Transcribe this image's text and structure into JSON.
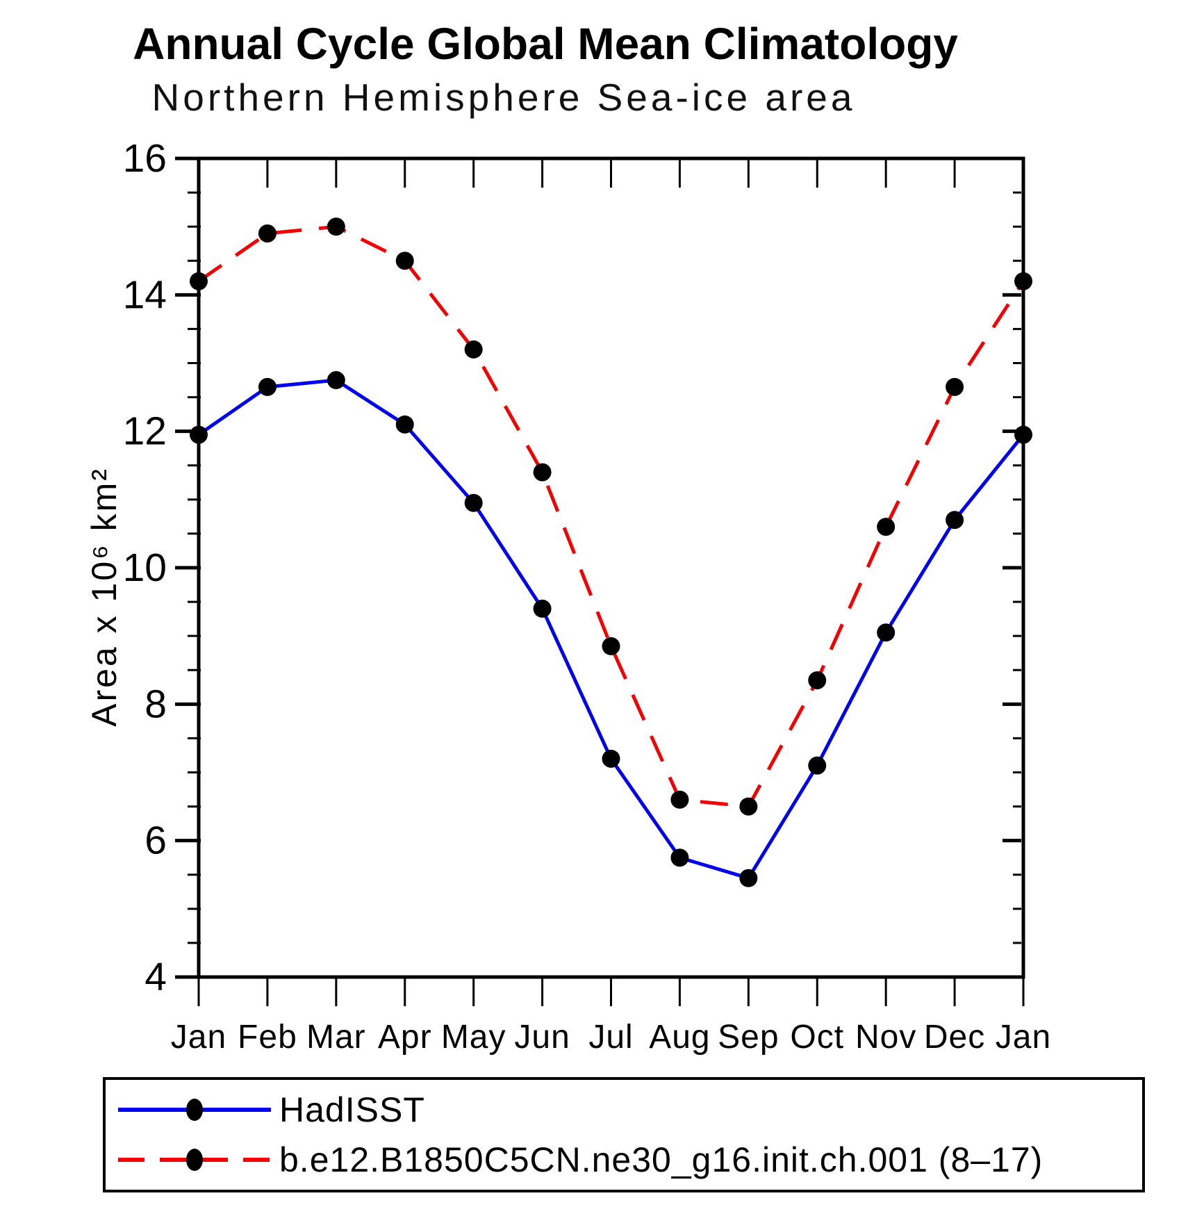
{
  "chart_data": {
    "type": "line",
    "title": "Annual Cycle Global Mean Climatology",
    "subtitle": "Northern Hemisphere Sea-ice area",
    "ylabel": "Area x 10⁶ km²",
    "xlabel": "",
    "categories": [
      "Jan",
      "Feb",
      "Mar",
      "Apr",
      "May",
      "Jun",
      "Jul",
      "Aug",
      "Sep",
      "Oct",
      "Nov",
      "Dec",
      "Jan"
    ],
    "ylim": [
      4,
      16
    ],
    "yticks": [
      4,
      6,
      8,
      10,
      12,
      14,
      16
    ],
    "ytick_minor_step": 0.5,
    "grid": "off",
    "legend_position": "bottom",
    "frame_color": "#000000",
    "marker": {
      "shape": "circle",
      "color": "#000000"
    },
    "series": [
      {
        "name": "HadISST",
        "color": "#0000ee",
        "line_style": "solid",
        "values": [
          11.95,
          12.65,
          12.75,
          12.1,
          10.95,
          9.4,
          7.2,
          5.75,
          5.45,
          7.1,
          9.05,
          10.7,
          11.95
        ]
      },
      {
        "name": "b.e12.B1850C5CN.ne30_g16.init.ch.001 (8–17)",
        "color": "#f40000",
        "line_style": "dashed",
        "values": [
          14.2,
          14.9,
          15.0,
          14.5,
          13.2,
          11.4,
          8.85,
          6.6,
          6.5,
          8.35,
          10.6,
          12.65,
          14.2
        ]
      }
    ]
  }
}
